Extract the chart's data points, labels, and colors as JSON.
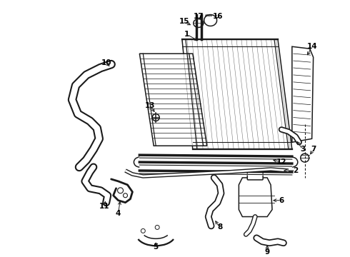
{
  "bg_color": "#ffffff",
  "line_color": "#1a1a1a",
  "fig_width": 4.9,
  "fig_height": 3.6,
  "dpi": 100,
  "font_size": 7.5
}
